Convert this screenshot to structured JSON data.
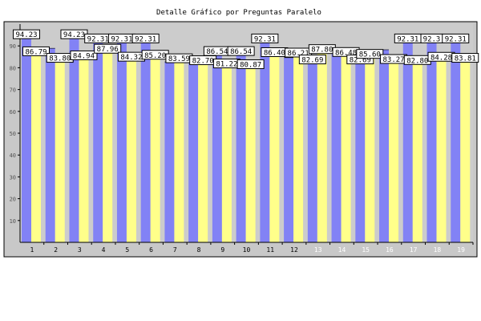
{
  "chart_data": {
    "type": "bar",
    "title": "Detalle Gráfico por Preguntas Paralelo",
    "xlabel": "",
    "ylabel": "",
    "ylim": [
      0,
      100
    ],
    "yticks": [
      10,
      20,
      30,
      40,
      50,
      60,
      70,
      80,
      90
    ],
    "grid": false,
    "legend": "none",
    "categories": [
      "1",
      "2",
      "3",
      "4",
      "5",
      "6",
      "7",
      "8",
      "9",
      "10",
      "11",
      "12",
      "13",
      "14",
      "15",
      "16",
      "17",
      "18",
      "19"
    ],
    "category_label_colors": [
      "#000000",
      "#000000",
      "#000000",
      "#000000",
      "#000000",
      "#000000",
      "#000000",
      "#000000",
      "#000000",
      "#000000",
      "#000000",
      "#000000",
      "#ffffff",
      "#ffffff",
      "#ffffff",
      "#ffffff",
      "#ffffff",
      "#ffffff",
      "#ffffff"
    ],
    "series": [
      {
        "color": "#8282f5",
        "values": [
          94.23,
          88.91,
          94.23,
          92.31,
          92.31,
          92.31,
          82.69,
          84.31,
          86.54,
          86.54,
          92.31,
          84.62,
          82.69,
          88.61,
          82.69,
          88.24,
          92.31,
          92.31,
          92.31
        ],
        "labels": [
          "94.23",
          "",
          "94.23",
          "92.31",
          "92.31",
          "92.31",
          "",
          "",
          "86.54",
          "86.54",
          "92.31",
          "",
          "82.69",
          "",
          "82.69",
          "",
          "92.31",
          "92.3",
          "92.31"
        ]
      },
      {
        "color": "#ffff8a",
        "values": [
          86.79,
          83.8,
          84.94,
          87.96,
          84.32,
          85.2,
          83.59,
          82.7,
          81.22,
          80.87,
          86.4,
          86.21,
          87.8,
          86.48,
          85.6,
          83.27,
          82.8,
          84.28,
          83.81
        ],
        "labels": [
          "86.79",
          "83.80",
          "84.94",
          "87.96",
          "84.32",
          "85.20",
          "83.59",
          "82.70",
          "81.22",
          "80.87",
          "86.40",
          "86.21",
          "87.80",
          "86.48",
          "85.60",
          "83.27",
          "82.80",
          "84.28",
          "83.81"
        ]
      }
    ],
    "colors": {
      "plot_frame_bg": "#c8c8c8",
      "plot_bg": "#cccccc",
      "axis": "#000000",
      "label_box_bg": "#ffffff"
    }
  }
}
